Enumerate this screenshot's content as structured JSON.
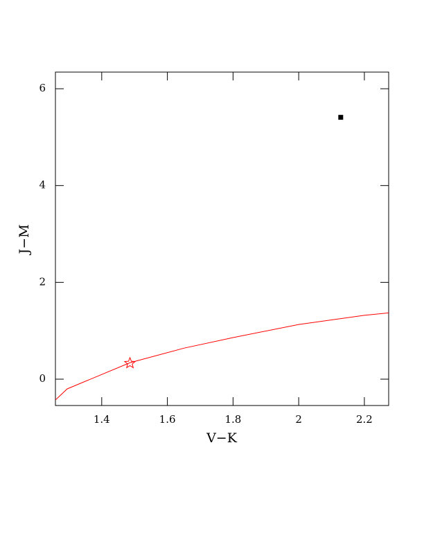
{
  "chart_data": {
    "type": "scatter",
    "xlabel": "V−K",
    "ylabel": "J−M",
    "xlim": [
      1.259,
      2.274
    ],
    "ylim": [
      -0.544,
      6.344
    ],
    "xticks": [
      1.4,
      1.6,
      1.8,
      2,
      2.2
    ],
    "yticks": [
      0,
      2,
      4,
      6
    ],
    "series": [
      {
        "style": "line",
        "color": "#ff0000",
        "x": [
          1.259,
          1.295,
          1.486,
          1.65,
          1.8,
          2.0,
          2.2,
          2.274
        ],
        "values": [
          -0.43,
          -0.2,
          0.34,
          0.64,
          0.86,
          1.13,
          1.32,
          1.37
        ]
      },
      {
        "style": "star",
        "color": "#ff0000",
        "x": [
          1.486
        ],
        "values": [
          0.33
        ]
      },
      {
        "style": "square",
        "color": "#000000",
        "x": [
          2.128
        ],
        "values": [
          5.41
        ]
      }
    ]
  }
}
